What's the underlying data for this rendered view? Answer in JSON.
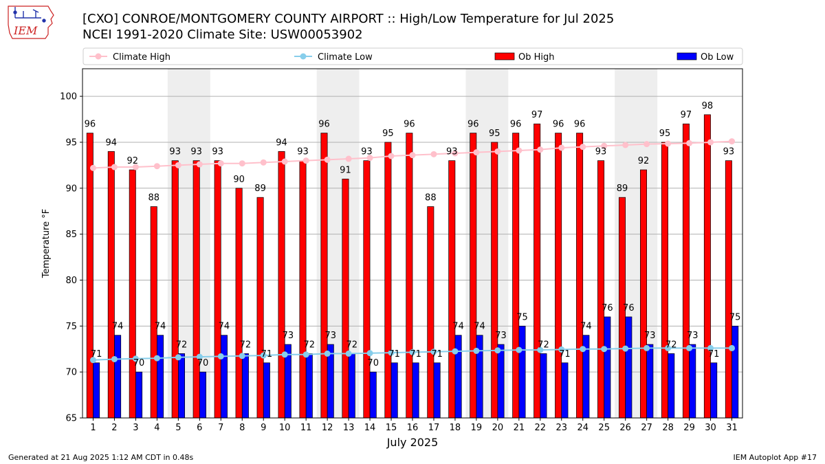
{
  "header": {
    "title_line1": "[CXO] CONROE/MONTGOMERY COUNTY AIRPORT :: High/Low Temperature for Jul 2025",
    "title_line2": "NCEI 1991-2020 Climate Site: USW00053902",
    "logo_text": "IEM"
  },
  "footer": {
    "generated": "Generated at 21 Aug 2025 1:12 AM CDT in 0.48s",
    "app": "IEM Autoplot App #17"
  },
  "colors": {
    "ob_high": "#ff0000",
    "ob_low": "#0000ff",
    "climate_high": "#ffc0cb",
    "climate_low": "#87ceeb",
    "weekend_shade": "#eeeeee",
    "grid": "#b0b0b0",
    "logo": "#cc2222"
  },
  "chart_data": {
    "type": "bar",
    "xlabel": "July 2025",
    "ylabel": "Temperature °F",
    "ylim": [
      65,
      103
    ],
    "xlim": [
      0.5,
      31.5
    ],
    "yticks": [
      65,
      70,
      75,
      80,
      85,
      90,
      95,
      100
    ],
    "grid": "horizontal",
    "legend_position": "top",
    "categories": [
      "1",
      "2",
      "3",
      "4",
      "5",
      "6",
      "7",
      "8",
      "9",
      "10",
      "11",
      "12",
      "13",
      "14",
      "15",
      "16",
      "17",
      "18",
      "19",
      "20",
      "21",
      "22",
      "23",
      "24",
      "25",
      "26",
      "27",
      "28",
      "29",
      "30",
      "31"
    ],
    "shaded_days": [
      [
        5,
        6
      ],
      [
        12,
        13
      ],
      [
        19,
        20
      ],
      [
        26,
        27
      ]
    ],
    "series": [
      {
        "name": "Ob High",
        "kind": "bar",
        "values": [
          96,
          94,
          92,
          88,
          93,
          93,
          93,
          90,
          89,
          94,
          93,
          96,
          91,
          93,
          95,
          96,
          88,
          93,
          96,
          95,
          96,
          97,
          96,
          96,
          93,
          89,
          92,
          95,
          97,
          98,
          93
        ]
      },
      {
        "name": "Ob Low",
        "kind": "bar",
        "values": [
          71,
          74,
          70,
          74,
          72,
          70,
          74,
          72,
          71,
          73,
          72,
          73,
          72,
          70,
          71,
          71,
          71,
          74,
          74,
          73,
          75,
          72,
          71,
          74,
          76,
          76,
          73,
          72,
          73,
          71,
          75
        ]
      },
      {
        "name": "Climate High",
        "kind": "line",
        "values": [
          92.2,
          92.3,
          92.3,
          92.4,
          92.5,
          92.6,
          92.7,
          92.7,
          92.8,
          92.9,
          93.0,
          93.1,
          93.2,
          93.3,
          93.5,
          93.6,
          93.7,
          93.8,
          93.9,
          94.0,
          94.1,
          94.2,
          94.4,
          94.5,
          94.6,
          94.7,
          94.8,
          94.85,
          94.9,
          95.0,
          95.1
        ]
      },
      {
        "name": "Climate Low",
        "kind": "line",
        "values": [
          71.3,
          71.4,
          71.45,
          71.5,
          71.6,
          71.65,
          71.7,
          71.75,
          71.8,
          71.9,
          71.9,
          72.0,
          72.0,
          72.05,
          72.1,
          72.15,
          72.2,
          72.25,
          72.3,
          72.35,
          72.4,
          72.4,
          72.45,
          72.5,
          72.5,
          72.55,
          72.6,
          72.6,
          72.6,
          72.6,
          72.6
        ]
      }
    ]
  }
}
